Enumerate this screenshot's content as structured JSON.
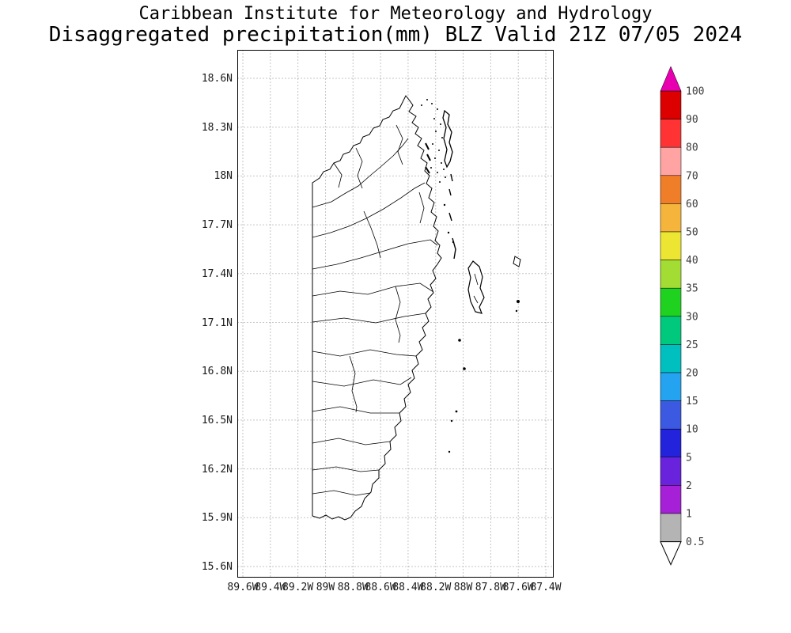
{
  "title": {
    "line1": "Caribbean Institute for Meteorology and Hydrology",
    "line2": "Disaggregated precipitation(mm) BLZ Valid 21Z 07/05 2024"
  },
  "map": {
    "lat_labels": [
      "18.6N",
      "18.3N",
      "18N",
      "17.7N",
      "17.4N",
      "17.1N",
      "16.8N",
      "16.5N",
      "16.2N",
      "15.9N",
      "15.6N"
    ],
    "lon_labels": [
      "89.6W",
      "89.4W",
      "89.2W",
      "89W",
      "88.8W",
      "88.6W",
      "88.4W",
      "88.2W",
      "88W",
      "87.8W",
      "87.6W",
      "87.4W"
    ]
  },
  "colorbar": {
    "levels_top_to_bottom": [
      "100",
      "90",
      "80",
      "70",
      "60",
      "50",
      "40",
      "35",
      "30",
      "25",
      "20",
      "15",
      "10",
      "5",
      "2",
      "1",
      "0.5"
    ],
    "band_colors_top_to_bottom": [
      "#dd0000",
      "#ff3333",
      "#ffa3a3",
      "#f07d28",
      "#f5b43c",
      "#ece632",
      "#a3dc32",
      "#20d220",
      "#00c87d",
      "#00bfbf",
      "#23a3f0",
      "#3c5ae1",
      "#2323dc",
      "#6923dc",
      "#a520d7",
      "#b4b4b4"
    ],
    "top_arrow_color": "#e800b0",
    "bottom_arrow_color": "#ffffff",
    "label_color": "#3c3c3c"
  },
  "chart_data": {
    "type": "map",
    "organization": "Caribbean Institute for Meteorology and Hydrology",
    "title": "Disaggregated precipitation(mm) BLZ Valid 21Z 07/05 2024",
    "region": "Belize (BLZ)",
    "valid_time": "21Z 07/05 2024",
    "lat_ticks": [
      "15.6N",
      "15.9N",
      "16.2N",
      "16.5N",
      "16.8N",
      "17.1N",
      "17.4N",
      "17.7N",
      "18N",
      "18.3N",
      "18.6N"
    ],
    "lon_ticks": [
      "89.6W",
      "89.4W",
      "89.2W",
      "89W",
      "88.8W",
      "88.6W",
      "88.4W",
      "88.2W",
      "88W",
      "87.8W",
      "87.6W",
      "87.4W"
    ],
    "colorbar_levels_mm": [
      0.5,
      1,
      2,
      5,
      10,
      15,
      20,
      25,
      30,
      35,
      40,
      50,
      60,
      70,
      80,
      90,
      100
    ],
    "precipitation_shading_visible": false
  }
}
